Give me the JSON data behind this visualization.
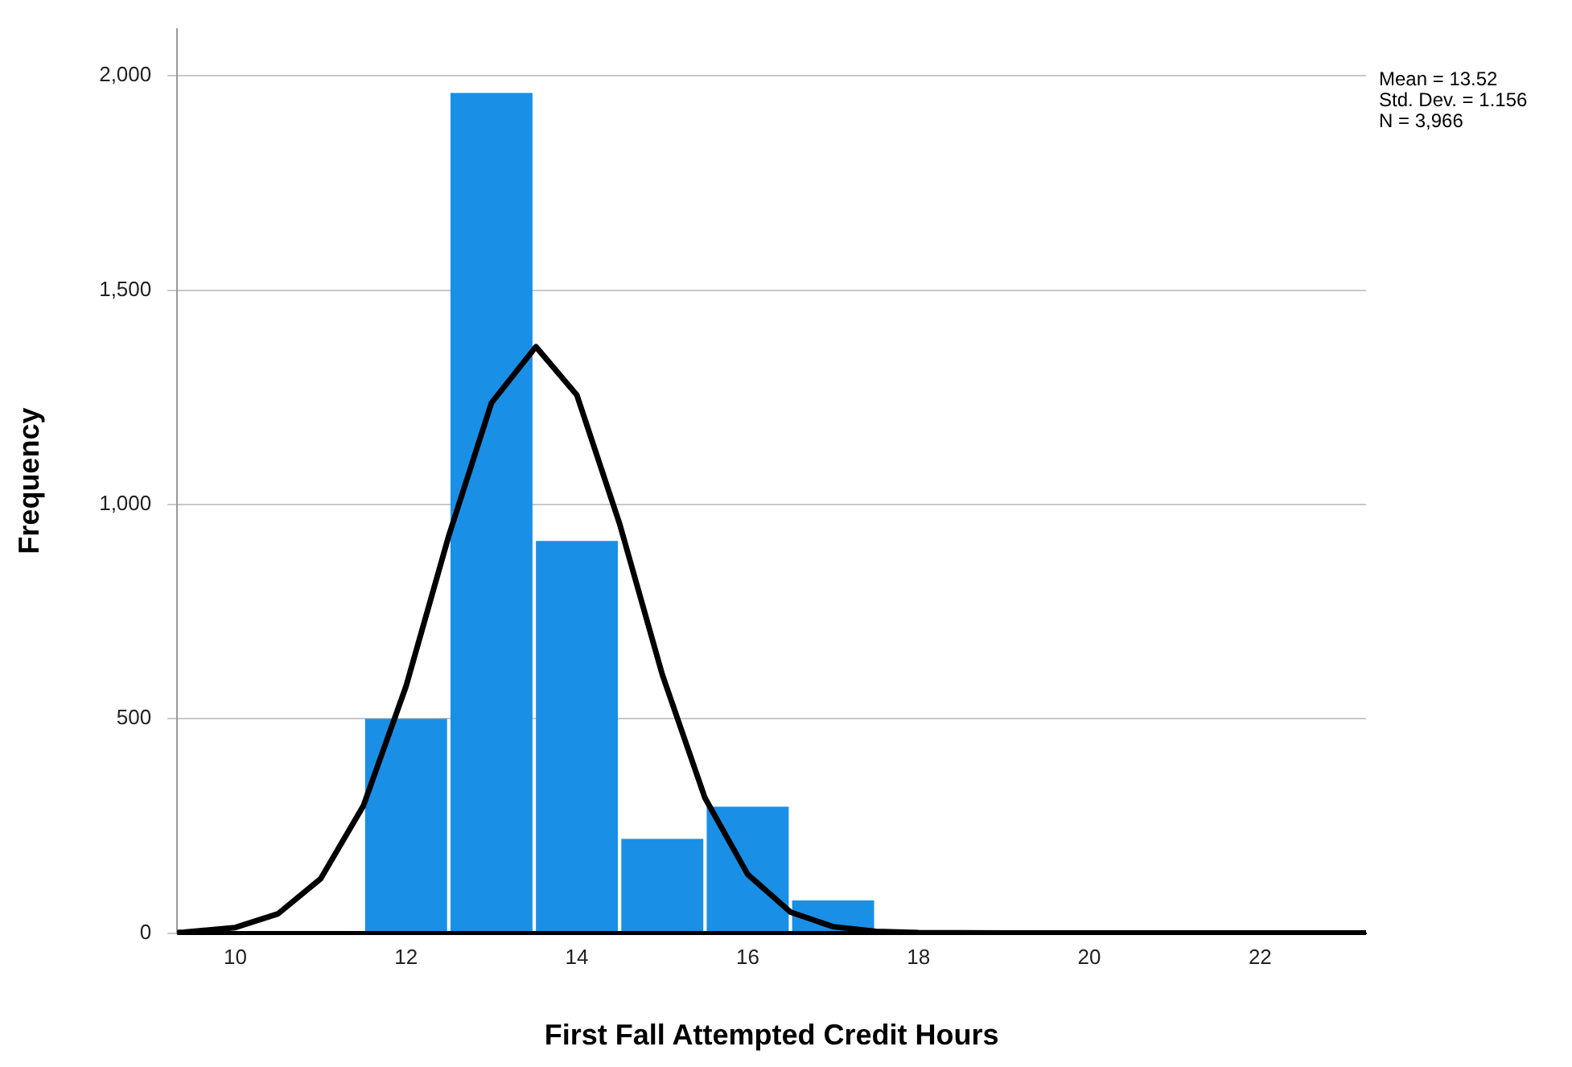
{
  "chart_data": {
    "type": "histogram",
    "xlabel": "First Fall Attempted Credit Hours",
    "ylabel": "Frequency",
    "bins": [
      11.5,
      12.5,
      13.5,
      14.5,
      15.5,
      16.5,
      17.5
    ],
    "values": [
      500,
      1960,
      915,
      220,
      295,
      76
    ],
    "color": "#1a8fe6",
    "series": [
      {
        "type": "line",
        "color": "#000000",
        "x": [
          9.32,
          9.4,
          10,
          10.5,
          11,
          11.5,
          12,
          12.5,
          13,
          13.52,
          14,
          14.5,
          15,
          15.5,
          16,
          16.5,
          17,
          17.5,
          18,
          19,
          20,
          21,
          22,
          23.24
        ],
        "values": [
          1,
          2,
          13,
          45,
          127,
          297,
          576,
          927,
          1237,
          1368,
          1255,
          955,
          603,
          315,
          137,
          49,
          15,
          4,
          1,
          0,
          0,
          0,
          0,
          0
        ]
      }
    ],
    "xlim": [
      9.32,
      23.24
    ],
    "xticks": [
      10,
      12,
      14,
      16,
      18,
      20,
      22
    ],
    "ylim": [
      0,
      2110
    ],
    "yticks": [
      0,
      500,
      {
        "value": 1000,
        "label": "1,000"
      },
      {
        "value": 1500,
        "label": "1,500"
      },
      {
        "value": 2000,
        "label": "2,000"
      }
    ],
    "grid": "y",
    "legend": false,
    "marker": "none",
    "line_style": "solid",
    "annotations": [
      "Mean = 13.52",
      "Std. Dev. = 1.156",
      "N = 3,966"
    ]
  }
}
